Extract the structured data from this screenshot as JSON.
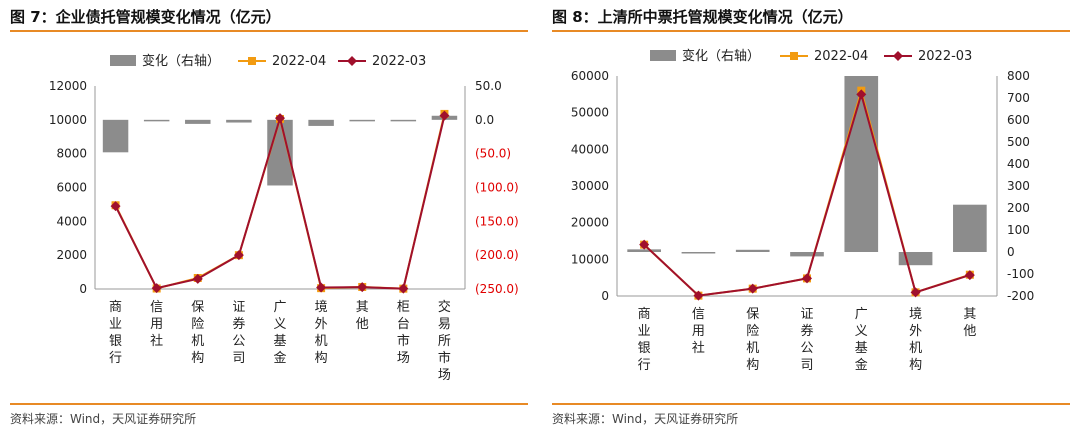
{
  "charts": [
    {
      "title": "图 7：企业债托管规模变化情况（亿元）",
      "source": "资料来源：Wind，天风证券研究所",
      "chart_data": {
        "type": "bar+line",
        "categories": [
          "商业银行",
          "信用社",
          "保险机构",
          "证券公司",
          "广义基金",
          "境外机构",
          "其他",
          "柜台市场",
          "交易所市场"
        ],
        "series": [
          {
            "name": "变化（右轴）",
            "type": "bar",
            "axis": "right",
            "values": [
              -48,
              -1,
              -6,
              -4,
              -97,
              -9,
              -2,
              0,
              6
            ]
          },
          {
            "name": "2022-04",
            "type": "line",
            "axis": "left",
            "values": [
              4950,
              30,
              650,
              2000,
              10050,
              50,
              120,
              20,
              10350
            ]
          },
          {
            "name": "2022-03",
            "type": "line",
            "axis": "left",
            "values": [
              4900,
              50,
              600,
              2000,
              10100,
              90,
              110,
              20,
              10250
            ]
          }
        ],
        "yLeft": {
          "min": 0,
          "max": 12000,
          "step": 2000,
          "ticks": [
            "0",
            "2000",
            "4000",
            "6000",
            "8000",
            "10000",
            "12000"
          ]
        },
        "yRight": {
          "min": -250,
          "max": 50,
          "step": 50,
          "ticks": [
            "(250.0)",
            "(200.0)",
            "(150.0)",
            "(100.0)",
            "(50.0)",
            "0.0",
            "50.0"
          ]
        },
        "rightNegativeColor": "#e00000",
        "legend": [
          "变化（右轴）",
          "2022-04",
          "2022-03"
        ]
      }
    },
    {
      "title": "图 8：上清所中票托管规模变化情况（亿元）",
      "source": "资料来源：Wind，天风证券研究所",
      "chart_data": {
        "type": "bar+line",
        "categories": [
          "商业银行",
          "信用社",
          "保险机构",
          "证券公司",
          "广义基金",
          "境外机构",
          "其他"
        ],
        "series": [
          {
            "name": "变化（右轴）",
            "type": "bar",
            "axis": "right",
            "values": [
              12,
              -1,
              10,
              -20,
              800,
              -60,
              215
            ]
          },
          {
            "name": "2022-04",
            "type": "line",
            "axis": "left",
            "values": [
              14000,
              100,
              2000,
              4800,
              56000,
              1000,
              5800
            ]
          },
          {
            "name": "2022-03",
            "type": "line",
            "axis": "left",
            "values": [
              14000,
              100,
              2000,
              4800,
              55000,
              1000,
              5700
            ]
          }
        ],
        "yLeft": {
          "min": 0,
          "max": 60000,
          "step": 10000,
          "ticks": [
            "0",
            "10000",
            "20000",
            "30000",
            "40000",
            "50000",
            "60000"
          ]
        },
        "yRight": {
          "min": -200,
          "max": 800,
          "step": 100,
          "ticks": [
            "-200",
            "-100",
            "0",
            "100",
            "200",
            "300",
            "400",
            "500",
            "600",
            "700",
            "800"
          ]
        },
        "rightNegativeColor": "#222222",
        "legend": [
          "变化（右轴）",
          "2022-04",
          "2022-03"
        ]
      }
    }
  ],
  "colors": {
    "bar": "#8c8c8c",
    "line04": "#f29b11",
    "line03": "#a0102c",
    "accent": "#e88a25"
  }
}
